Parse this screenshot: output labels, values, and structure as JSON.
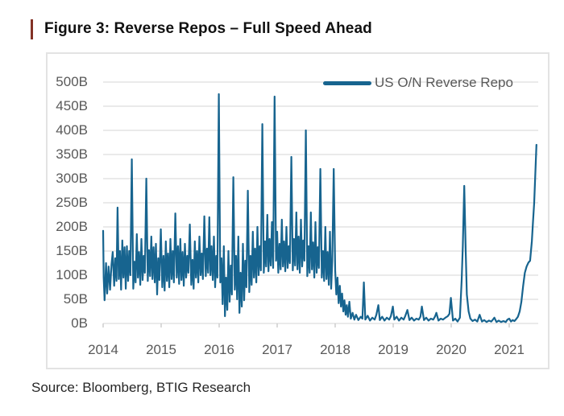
{
  "figure": {
    "title": "Figure 3: Reverse Repos – Full Speed Ahead",
    "accent_bar_color": "#833226"
  },
  "source": {
    "text": "Source: Bloomberg, BTIG Research"
  },
  "chart_data": {
    "type": "line",
    "title": "Figure 3: Reverse Repos – Full Speed Ahead",
    "xlabel": "",
    "ylabel": "",
    "x_tick_values": [
      2014,
      2015,
      2016,
      2017,
      2018,
      2019,
      2020,
      2021
    ],
    "x_tick_labels": [
      "2014",
      "2015",
      "2016",
      "2017",
      "2018",
      "2019",
      "2020",
      "2021"
    ],
    "y_tick_values": [
      0,
      50,
      100,
      150,
      200,
      250,
      300,
      350,
      400,
      450,
      500
    ],
    "y_tick_labels": [
      "0B",
      "50B",
      "100B",
      "150B",
      "200B",
      "250B",
      "300B",
      "350B",
      "400B",
      "450B",
      "500B"
    ],
    "xlim": [
      2014,
      2021.5
    ],
    "ylim": [
      0,
      500
    ],
    "grid": "horizontal",
    "grid_color": "#dedede",
    "tick_color": "#c2c2c2",
    "legend_position": "top-right",
    "series": [
      {
        "name": "US O/N Reverse Repo",
        "color": "#17648F",
        "points": [
          [
            2014.0,
            192
          ],
          [
            2014.01,
            95
          ],
          [
            2014.025,
            48
          ],
          [
            2014.05,
            125
          ],
          [
            2014.07,
            62
          ],
          [
            2014.095,
            118
          ],
          [
            2014.12,
            70
          ],
          [
            2014.145,
            122
          ],
          [
            2014.165,
            148
          ],
          [
            2014.19,
            78
          ],
          [
            2014.21,
            135
          ],
          [
            2014.23,
            88
          ],
          [
            2014.248,
            240
          ],
          [
            2014.27,
            92
          ],
          [
            2014.29,
            150
          ],
          [
            2014.31,
            70
          ],
          [
            2014.33,
            172
          ],
          [
            2014.35,
            95
          ],
          [
            2014.37,
            158
          ],
          [
            2014.39,
            72
          ],
          [
            2014.41,
            160
          ],
          [
            2014.43,
            88
          ],
          [
            2014.45,
            150
          ],
          [
            2014.47,
            100
          ],
          [
            2014.495,
            340
          ],
          [
            2014.52,
            72
          ],
          [
            2014.54,
            128
          ],
          [
            2014.56,
            85
          ],
          [
            2014.58,
            185
          ],
          [
            2014.6,
            95
          ],
          [
            2014.62,
            148
          ],
          [
            2014.64,
            80
          ],
          [
            2014.66,
            175
          ],
          [
            2014.68,
            90
          ],
          [
            2014.7,
            140
          ],
          [
            2014.72,
            105
          ],
          [
            2014.745,
            300
          ],
          [
            2014.77,
            88
          ],
          [
            2014.79,
            152
          ],
          [
            2014.81,
            98
          ],
          [
            2014.83,
            180
          ],
          [
            2014.85,
            92
          ],
          [
            2014.87,
            158
          ],
          [
            2014.89,
            85
          ],
          [
            2014.91,
            165
          ],
          [
            2014.93,
            60
          ],
          [
            2014.95,
            135
          ],
          [
            2014.97,
            90
          ],
          [
            2014.995,
            195
          ],
          [
            2015.02,
            75
          ],
          [
            2015.04,
            140
          ],
          [
            2015.06,
            68
          ],
          [
            2015.08,
            170
          ],
          [
            2015.1,
            88
          ],
          [
            2015.12,
            145
          ],
          [
            2015.14,
            75
          ],
          [
            2015.16,
            175
          ],
          [
            2015.18,
            92
          ],
          [
            2015.2,
            150
          ],
          [
            2015.22,
            85
          ],
          [
            2015.245,
            228
          ],
          [
            2015.27,
            95
          ],
          [
            2015.29,
            160
          ],
          [
            2015.31,
            82
          ],
          [
            2015.33,
            175
          ],
          [
            2015.35,
            90
          ],
          [
            2015.37,
            148
          ],
          [
            2015.39,
            78
          ],
          [
            2015.41,
            165
          ],
          [
            2015.43,
            95
          ],
          [
            2015.45,
            140
          ],
          [
            2015.47,
            105
          ],
          [
            2015.495,
            205
          ],
          [
            2015.52,
            80
          ],
          [
            2015.54,
            132
          ],
          [
            2015.56,
            72
          ],
          [
            2015.58,
            170
          ],
          [
            2015.6,
            95
          ],
          [
            2015.62,
            150
          ],
          [
            2015.64,
            85
          ],
          [
            2015.66,
            180
          ],
          [
            2015.68,
            100
          ],
          [
            2015.7,
            145
          ],
          [
            2015.72,
            92
          ],
          [
            2015.745,
            222
          ],
          [
            2015.77,
            98
          ],
          [
            2015.79,
            155
          ],
          [
            2015.81,
            105
          ],
          [
            2015.83,
            220
          ],
          [
            2015.85,
            100
          ],
          [
            2015.87,
            160
          ],
          [
            2015.89,
            90
          ],
          [
            2015.91,
            180
          ],
          [
            2015.93,
            75
          ],
          [
            2015.95,
            140
          ],
          [
            2015.97,
            95
          ],
          [
            2015.995,
            475
          ],
          [
            2016.02,
            85
          ],
          [
            2016.04,
            135
          ],
          [
            2016.06,
            40
          ],
          [
            2016.08,
            160
          ],
          [
            2016.1,
            15
          ],
          [
            2016.12,
            95
          ],
          [
            2016.14,
            28
          ],
          [
            2016.16,
            150
          ],
          [
            2016.18,
            45
          ],
          [
            2016.2,
            120
          ],
          [
            2016.22,
            60
          ],
          [
            2016.245,
            303
          ],
          [
            2016.27,
            70
          ],
          [
            2016.29,
            140
          ],
          [
            2016.31,
            50
          ],
          [
            2016.33,
            180
          ],
          [
            2016.35,
            22
          ],
          [
            2016.37,
            105
          ],
          [
            2016.39,
            35
          ],
          [
            2016.41,
            165
          ],
          [
            2016.43,
            48
          ],
          [
            2016.45,
            130
          ],
          [
            2016.47,
            75
          ],
          [
            2016.495,
            275
          ],
          [
            2016.52,
            65
          ],
          [
            2016.54,
            140
          ],
          [
            2016.56,
            80
          ],
          [
            2016.58,
            190
          ],
          [
            2016.6,
            95
          ],
          [
            2016.62,
            155
          ],
          [
            2016.64,
            85
          ],
          [
            2016.66,
            200
          ],
          [
            2016.68,
            100
          ],
          [
            2016.7,
            160
          ],
          [
            2016.72,
            110
          ],
          [
            2016.745,
            413
          ],
          [
            2016.77,
            105
          ],
          [
            2016.79,
            170
          ],
          [
            2016.81,
            118
          ],
          [
            2016.83,
            225
          ],
          [
            2016.85,
            108
          ],
          [
            2016.87,
            175
          ],
          [
            2016.89,
            120
          ],
          [
            2016.91,
            210
          ],
          [
            2016.93,
            115
          ],
          [
            2016.955,
            470
          ],
          [
            2016.98,
            130
          ],
          [
            2017.0,
            190
          ],
          [
            2017.02,
            105
          ],
          [
            2017.04,
            165
          ],
          [
            2017.06,
            112
          ],
          [
            2017.08,
            215
          ],
          [
            2017.1,
            118
          ],
          [
            2017.12,
            170
          ],
          [
            2017.14,
            108
          ],
          [
            2017.16,
            200
          ],
          [
            2017.18,
            115
          ],
          [
            2017.2,
            160
          ],
          [
            2017.22,
            125
          ],
          [
            2017.245,
            345
          ],
          [
            2017.27,
            110
          ],
          [
            2017.29,
            175
          ],
          [
            2017.31,
            120
          ],
          [
            2017.33,
            230
          ],
          [
            2017.35,
            112
          ],
          [
            2017.37,
            180
          ],
          [
            2017.39,
            105
          ],
          [
            2017.41,
            215
          ],
          [
            2017.43,
            118
          ],
          [
            2017.45,
            172
          ],
          [
            2017.47,
            130
          ],
          [
            2017.495,
            400
          ],
          [
            2017.52,
            98
          ],
          [
            2017.54,
            160
          ],
          [
            2017.56,
            105
          ],
          [
            2017.58,
            230
          ],
          [
            2017.6,
            112
          ],
          [
            2017.62,
            168
          ],
          [
            2017.64,
            95
          ],
          [
            2017.66,
            210
          ],
          [
            2017.68,
            105
          ],
          [
            2017.7,
            158
          ],
          [
            2017.72,
            115
          ],
          [
            2017.745,
            320
          ],
          [
            2017.77,
            95
          ],
          [
            2017.79,
            150
          ],
          [
            2017.81,
            88
          ],
          [
            2017.83,
            200
          ],
          [
            2017.85,
            92
          ],
          [
            2017.87,
            148
          ],
          [
            2017.89,
            80
          ],
          [
            2017.91,
            190
          ],
          [
            2017.93,
            72
          ],
          [
            2017.95,
            130
          ],
          [
            2017.975,
            320
          ],
          [
            2018.0,
            110
          ],
          [
            2018.02,
            60
          ],
          [
            2018.04,
            95
          ],
          [
            2018.06,
            42
          ],
          [
            2018.08,
            78
          ],
          [
            2018.1,
            35
          ],
          [
            2018.12,
            62
          ],
          [
            2018.14,
            25
          ],
          [
            2018.16,
            48
          ],
          [
            2018.18,
            18
          ],
          [
            2018.2,
            38
          ],
          [
            2018.22,
            14
          ],
          [
            2018.245,
            45
          ],
          [
            2018.27,
            10
          ],
          [
            2018.3,
            22
          ],
          [
            2018.33,
            8
          ],
          [
            2018.36,
            18
          ],
          [
            2018.4,
            7
          ],
          [
            2018.44,
            14
          ],
          [
            2018.47,
            10
          ],
          [
            2018.495,
            85
          ],
          [
            2018.52,
            8
          ],
          [
            2018.56,
            16
          ],
          [
            2018.6,
            6
          ],
          [
            2018.64,
            12
          ],
          [
            2018.68,
            8
          ],
          [
            2018.71,
            18
          ],
          [
            2018.745,
            38
          ],
          [
            2018.77,
            7
          ],
          [
            2018.81,
            14
          ],
          [
            2018.85,
            6
          ],
          [
            2018.89,
            12
          ],
          [
            2018.93,
            8
          ],
          [
            2018.96,
            15
          ],
          [
            2018.995,
            35
          ],
          [
            2019.02,
            8
          ],
          [
            2019.06,
            14
          ],
          [
            2019.1,
            6
          ],
          [
            2019.14,
            12
          ],
          [
            2019.18,
            8
          ],
          [
            2019.21,
            16
          ],
          [
            2019.245,
            28
          ],
          [
            2019.28,
            7
          ],
          [
            2019.32,
            12
          ],
          [
            2019.36,
            6
          ],
          [
            2019.4,
            10
          ],
          [
            2019.44,
            8
          ],
          [
            2019.47,
            14
          ],
          [
            2019.495,
            35
          ],
          [
            2019.53,
            7
          ],
          [
            2019.57,
            12
          ],
          [
            2019.61,
            6
          ],
          [
            2019.65,
            10
          ],
          [
            2019.69,
            8
          ],
          [
            2019.72,
            14
          ],
          [
            2019.745,
            22
          ],
          [
            2019.78,
            6
          ],
          [
            2019.82,
            10
          ],
          [
            2019.86,
            8
          ],
          [
            2019.9,
            12
          ],
          [
            2019.94,
            15
          ],
          [
            2019.97,
            20
          ],
          [
            2019.995,
            53
          ],
          [
            2020.03,
            6
          ],
          [
            2020.07,
            10
          ],
          [
            2020.11,
            4
          ],
          [
            2020.15,
            12
          ],
          [
            2020.18,
            90
          ],
          [
            2020.2,
            160
          ],
          [
            2020.225,
            285
          ],
          [
            2020.25,
            150
          ],
          [
            2020.27,
            60
          ],
          [
            2020.3,
            25
          ],
          [
            2020.33,
            10
          ],
          [
            2020.37,
            5
          ],
          [
            2020.41,
            8
          ],
          [
            2020.45,
            4
          ],
          [
            2020.49,
            18
          ],
          [
            2020.53,
            4
          ],
          [
            2020.57,
            7
          ],
          [
            2020.61,
            3
          ],
          [
            2020.65,
            6
          ],
          [
            2020.69,
            4
          ],
          [
            2020.72,
            8
          ],
          [
            2020.745,
            12
          ],
          [
            2020.78,
            3
          ],
          [
            2020.82,
            6
          ],
          [
            2020.86,
            3
          ],
          [
            2020.9,
            5
          ],
          [
            2020.94,
            3
          ],
          [
            2020.97,
            8
          ],
          [
            2021.0,
            10
          ],
          [
            2021.03,
            4
          ],
          [
            2021.06,
            7
          ],
          [
            2021.09,
            5
          ],
          [
            2021.12,
            9
          ],
          [
            2021.15,
            14
          ],
          [
            2021.18,
            25
          ],
          [
            2021.21,
            45
          ],
          [
            2021.24,
            78
          ],
          [
            2021.27,
            105
          ],
          [
            2021.3,
            118
          ],
          [
            2021.33,
            126
          ],
          [
            2021.36,
            130
          ],
          [
            2021.39,
            170
          ],
          [
            2021.41,
            210
          ],
          [
            2021.43,
            250
          ],
          [
            2021.45,
            310
          ],
          [
            2021.47,
            370
          ]
        ]
      }
    ]
  }
}
